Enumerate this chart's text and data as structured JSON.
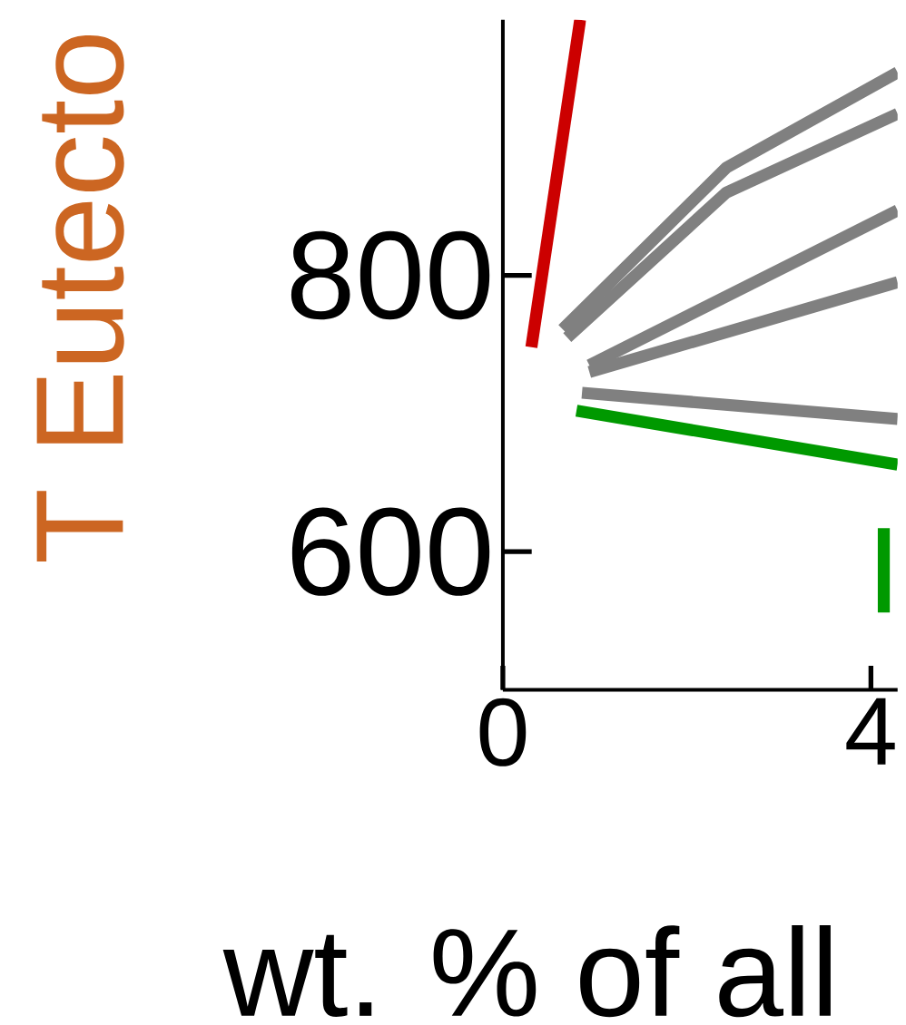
{
  "chart_data": {
    "type": "line",
    "ylabel": "T Eutecto",
    "xlabel": "wt. % of all",
    "xlim": [
      0,
      4.29
    ],
    "ylim": [
      500,
      985
    ],
    "xticks": [
      0,
      4
    ],
    "yticks": [
      600,
      800
    ],
    "series": [
      {
        "color": "#cc0000",
        "x": [
          0.31,
          0.84
        ],
        "values": [
          748,
          985
        ]
      },
      {
        "color": "#808080",
        "x": [
          0.65,
          2.43,
          4.29
        ],
        "values": [
          761,
          878,
          947
        ]
      },
      {
        "color": "#808080",
        "x": [
          0.7,
          2.43,
          4.29
        ],
        "values": [
          755,
          860,
          917
        ]
      },
      {
        "color": "#808080",
        "x": [
          0.94,
          4.29
        ],
        "values": [
          735,
          847
        ]
      },
      {
        "color": "#808080",
        "x": [
          0.94,
          4.29
        ],
        "values": [
          730,
          795
        ]
      },
      {
        "color": "#808080",
        "x": [
          0.86,
          4.29
        ],
        "values": [
          715,
          696
        ]
      },
      {
        "color": "#009900",
        "x": [
          0.8,
          4.29
        ],
        "values": [
          702,
          663
        ]
      },
      {
        "color": "#009900",
        "x": [
          4.14,
          4.14
        ],
        "values": [
          617,
          556
        ]
      }
    ]
  }
}
